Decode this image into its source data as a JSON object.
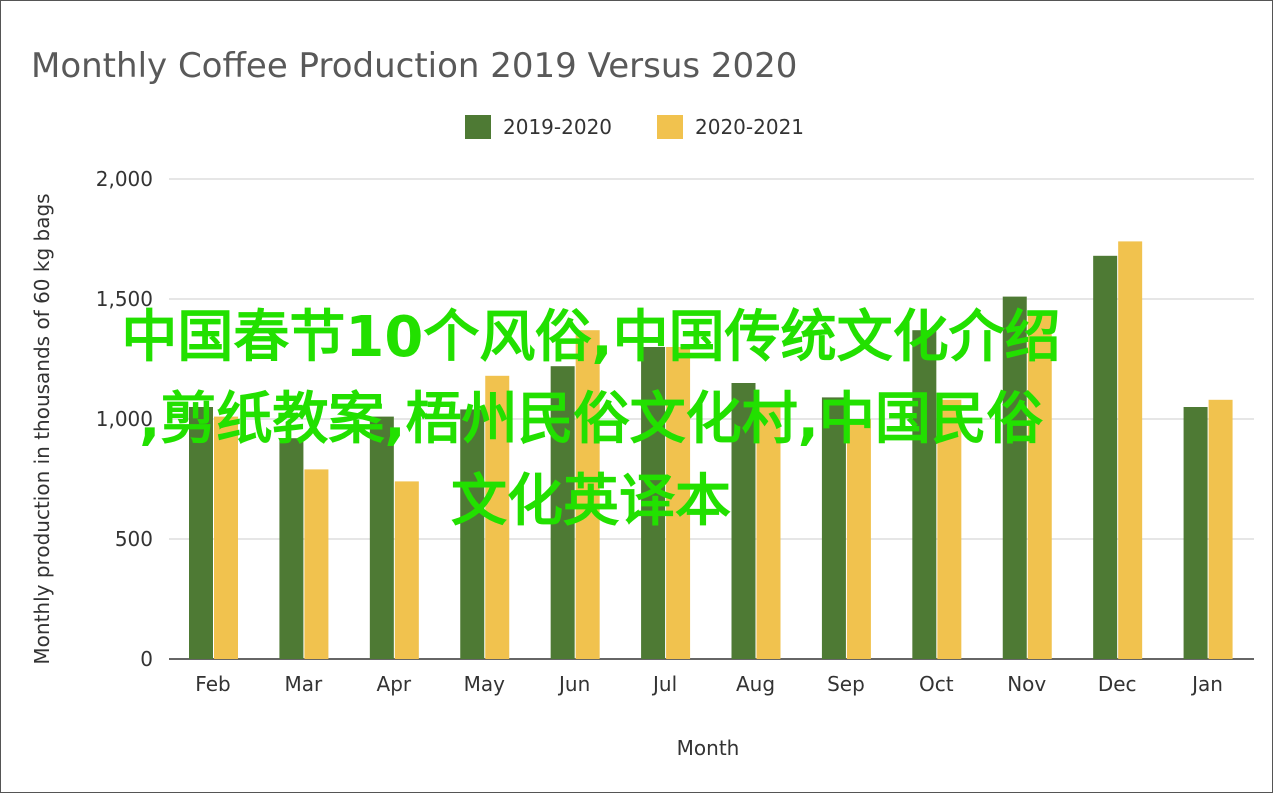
{
  "chart_data": {
    "type": "bar",
    "title": "Monthly Coffee Production 2019 Versus 2020",
    "xlabel": "Month",
    "ylabel": "Monthly production in thousands of 60 kg bags",
    "ylim": [
      0,
      2000
    ],
    "yticks": [
      0,
      500,
      1000,
      1500,
      2000
    ],
    "ytick_labels": [
      "0",
      "500",
      "1,000",
      "1,500",
      "2,000"
    ],
    "grid": true,
    "legend_position": "top-center",
    "categories": [
      "Feb",
      "Mar",
      "Apr",
      "May",
      "Jun",
      "Jul",
      "Aug",
      "Sep",
      "Oct",
      "Nov",
      "Dec",
      "Jan"
    ],
    "series": [
      {
        "name": "2019-2020",
        "color": "#4e7a34",
        "values": [
          1050,
          920,
          1010,
          1040,
          1220,
          1300,
          1150,
          1090,
          1370,
          1510,
          1680,
          1050
        ]
      },
      {
        "name": "2020-2021",
        "color": "#f1c24e",
        "values": [
          1010,
          790,
          740,
          1180,
          1370,
          1300,
          1050,
          1000,
          1080,
          1450,
          1740,
          1080
        ]
      }
    ]
  },
  "overlay": {
    "lines": [
      "中国春节10个风俗,中国传统文化介绍",
      ",剪纸教案,梧州民俗文化村,中国民俗",
      "文化英译本"
    ],
    "color": "#22e000"
  }
}
